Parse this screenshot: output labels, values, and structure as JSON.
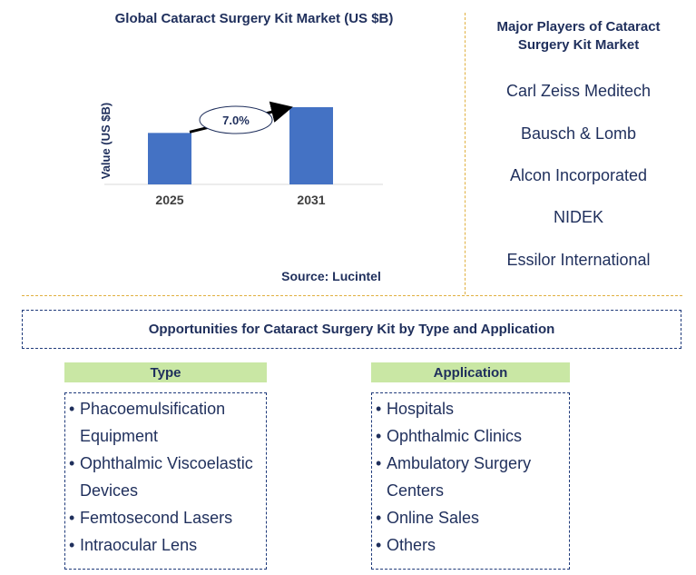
{
  "chart_data": {
    "type": "bar",
    "title": "Global Cataract Surgery Kit Market (US $B)",
    "categories": [
      "2025",
      "2031"
    ],
    "values": [
      1.0,
      1.5
    ],
    "ylabel": "Value (US $B)",
    "xlabel": "",
    "cagr_label": "7.0%",
    "bar_color": "#4472c4"
  },
  "source": "Source: Lucintel",
  "players": {
    "title": "Major Players of Cataract Surgery Kit Market",
    "items": [
      "Carl Zeiss Meditech",
      "Bausch & Lomb",
      "Alcon Incorporated",
      "NIDEK",
      "Essilor International"
    ]
  },
  "opportunities": {
    "title": "Opportunities for Cataract Surgery Kit by Type and Application",
    "type": {
      "heading": "Type",
      "items": [
        "Phacoemulsification Equipment",
        "Ophthalmic Viscoelastic Devices",
        "Femtosecond Lasers",
        "Intraocular Lens"
      ]
    },
    "application": {
      "heading": "Application",
      "items": [
        "Hospitals",
        "Ophthalmic Clinics",
        "Ambulatory Surgery Centers",
        "Online Sales",
        "Others"
      ]
    }
  },
  "colors": {
    "accent_green": "#c9e7a4",
    "dashed_gold": "#e0b040",
    "navy_text": "#1f2f5c"
  }
}
